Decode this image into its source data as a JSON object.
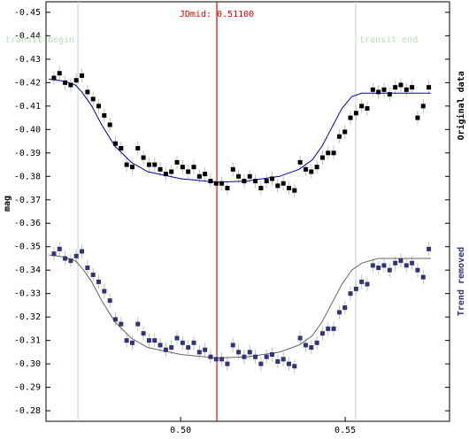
{
  "chart_data": {
    "type": "scatter",
    "ylabel": "mag",
    "xlim": [
      0.4591,
      0.5817
    ],
    "ylim": [
      -0.2755,
      -0.4545
    ],
    "xticks": [
      {
        "value": 0.5,
        "label": "0.50"
      },
      {
        "value": 0.55,
        "label": "0.55"
      }
    ],
    "yticks": [
      -0.45,
      -0.44,
      -0.43,
      -0.42,
      -0.41,
      {
        "value": -0.4,
        "label": "-0.40"
      },
      -0.39,
      -0.38,
      -0.37,
      -0.36,
      -0.35,
      -0.34,
      -0.33,
      -0.32,
      -0.31,
      {
        "value": -0.3,
        "label": "-0.30"
      },
      -0.29,
      -0.28
    ],
    "vlines": [
      {
        "x": 0.511,
        "label": "JDmid: 0.51100",
        "color": "#dd0000"
      },
      {
        "x": 0.4688,
        "label": "transit begin",
        "color": "#b8dcb8"
      },
      {
        "x": 0.5532,
        "label": "transit end",
        "color": "#b8dcb8"
      }
    ],
    "series": [
      {
        "name": "Original data",
        "color": "#000000",
        "error": 0.003,
        "error_color": "#b8c8a8",
        "x0": 0.4615,
        "dx": 0.0017,
        "values": [
          -0.422,
          -0.424,
          -0.42,
          -0.419,
          -0.421,
          -0.423,
          -0.416,
          -0.413,
          -0.41,
          -0.406,
          -0.402,
          -0.394,
          -0.392,
          -0.385,
          -0.384,
          -0.392,
          -0.388,
          -0.385,
          -0.385,
          -0.383,
          -0.381,
          -0.382,
          -0.386,
          -0.384,
          -0.382,
          -0.384,
          -0.38,
          -0.381,
          -0.378,
          -0.377,
          -0.377,
          -0.375,
          -0.383,
          -0.38,
          -0.378,
          -0.38,
          -0.378,
          -0.375,
          -0.378,
          -0.379,
          -0.376,
          -0.377,
          -0.375,
          -0.374,
          -0.386,
          -0.383,
          -0.382,
          -0.384,
          -0.388,
          -0.39,
          -0.39,
          -0.397,
          -0.399,
          -0.405,
          -0.407,
          -0.41,
          -0.409,
          -0.417,
          -0.416,
          -0.417,
          -0.415,
          -0.418,
          -0.419,
          -0.417,
          -0.418,
          -0.405,
          -0.41,
          -0.418
        ],
        "model_color": "#0000aa",
        "model_x": [
          0.46,
          0.465,
          0.468,
          0.47,
          0.473,
          0.476,
          0.48,
          0.485,
          0.49,
          0.5,
          0.511,
          0.52,
          0.53,
          0.536,
          0.54,
          0.543,
          0.546,
          0.549,
          0.552,
          0.555,
          0.56,
          0.57,
          0.576
        ],
        "model_values": [
          -0.4215,
          -0.4205,
          -0.419,
          -0.416,
          -0.41,
          -0.402,
          -0.393,
          -0.386,
          -0.382,
          -0.379,
          -0.3775,
          -0.378,
          -0.38,
          -0.383,
          -0.387,
          -0.393,
          -0.401,
          -0.409,
          -0.414,
          -0.4155,
          -0.4155,
          -0.4155,
          -0.4155
        ]
      },
      {
        "name": "Trend removed",
        "color": "#33337a",
        "error": 0.003,
        "error_color": "#b8c8a8",
        "x0": 0.4615,
        "dx": 0.0017,
        "values": [
          -0.347,
          -0.349,
          -0.345,
          -0.344,
          -0.346,
          -0.348,
          -0.341,
          -0.338,
          -0.335,
          -0.331,
          -0.327,
          -0.319,
          -0.317,
          -0.31,
          -0.309,
          -0.317,
          -0.313,
          -0.31,
          -0.31,
          -0.308,
          -0.306,
          -0.307,
          -0.311,
          -0.309,
          -0.307,
          -0.309,
          -0.305,
          -0.306,
          -0.303,
          -0.302,
          -0.302,
          -0.3,
          -0.308,
          -0.305,
          -0.303,
          -0.305,
          -0.303,
          -0.3,
          -0.303,
          -0.304,
          -0.301,
          -0.302,
          -0.3,
          -0.299,
          -0.311,
          -0.308,
          -0.307,
          -0.309,
          -0.313,
          -0.315,
          -0.315,
          -0.322,
          -0.324,
          -0.33,
          -0.332,
          -0.335,
          -0.334,
          -0.342,
          -0.341,
          -0.342,
          -0.34,
          -0.343,
          -0.344,
          -0.342,
          -0.343,
          -0.34,
          -0.337,
          -0.349
        ],
        "model_color": "#666666",
        "model_x": [
          0.46,
          0.465,
          0.468,
          0.47,
          0.473,
          0.476,
          0.48,
          0.485,
          0.49,
          0.5,
          0.511,
          0.52,
          0.53,
          0.536,
          0.54,
          0.543,
          0.546,
          0.549,
          0.552,
          0.555,
          0.56,
          0.57,
          0.576
        ],
        "model_values": [
          -0.3465,
          -0.3455,
          -0.344,
          -0.341,
          -0.335,
          -0.327,
          -0.318,
          -0.311,
          -0.307,
          -0.304,
          -0.3025,
          -0.303,
          -0.305,
          -0.308,
          -0.312,
          -0.318,
          -0.326,
          -0.334,
          -0.34,
          -0.343,
          -0.345,
          -0.345,
          -0.345
        ]
      }
    ]
  }
}
